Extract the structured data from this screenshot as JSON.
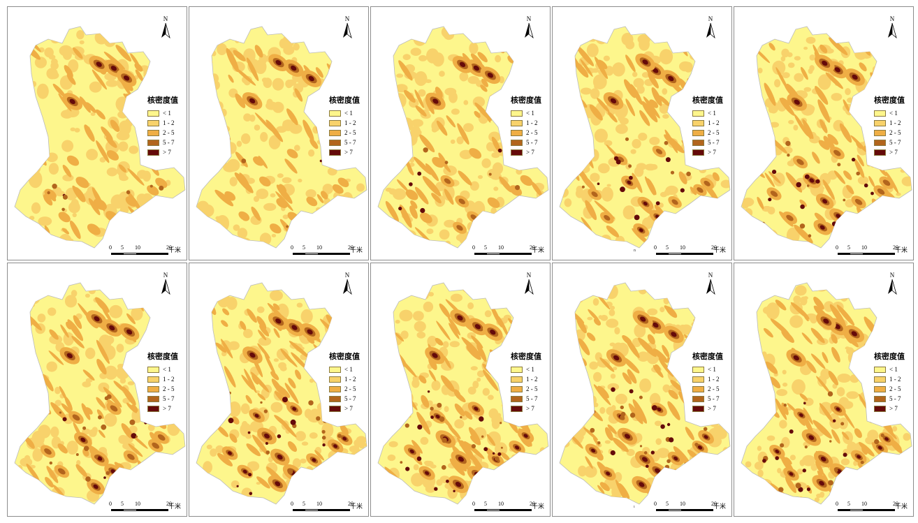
{
  "figure": {
    "panel_count": 10,
    "rows": 2,
    "columns": 5
  },
  "legend": {
    "title": "核密度值",
    "classes": [
      {
        "label": "< 1",
        "color": "#fdf68c"
      },
      {
        "label": "1 - 2",
        "color": "#f8d26b"
      },
      {
        "label": "2 - 5",
        "color": "#efae45"
      },
      {
        "label": "5 - 7",
        "color": "#b2651d"
      },
      {
        "label": "> 7",
        "color": "#650a0a"
      }
    ]
  },
  "north_arrow": {
    "label": "N"
  },
  "scale_bar": {
    "ticks": [
      "0",
      "5",
      "10",
      "20"
    ],
    "unit": "千米"
  },
  "stray_marks": {
    "panel_4": "n",
    "panel_9": "ı"
  },
  "panels": [
    {
      "id": 1,
      "intensity": 0.25
    },
    {
      "id": 2,
      "intensity": 0.12
    },
    {
      "id": 3,
      "intensity": 0.3
    },
    {
      "id": 4,
      "intensity": 0.45
    },
    {
      "id": 5,
      "intensity": 0.6
    },
    {
      "id": 6,
      "intensity": 0.62
    },
    {
      "id": 7,
      "intensity": 0.72
    },
    {
      "id": 8,
      "intensity": 0.78
    },
    {
      "id": 9,
      "intensity": 0.74
    },
    {
      "id": 10,
      "intensity": 0.7
    }
  ]
}
